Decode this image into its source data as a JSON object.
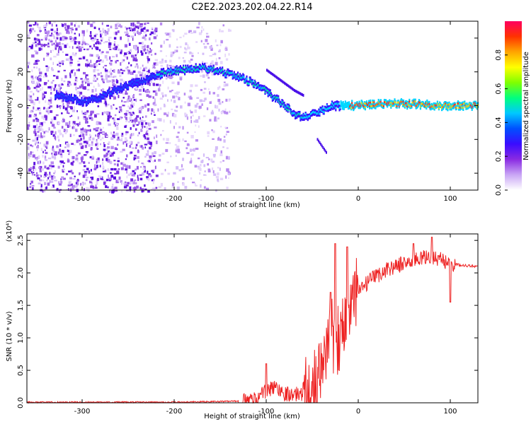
{
  "title": "C2E2.2023.202.04.22.R14",
  "chart_data": [
    {
      "type": "heatmap",
      "xlabel": "Height of straight line (km)",
      "ylabel": "Frequency (Hz)",
      "xlim": [
        -360,
        130
      ],
      "ylim": [
        -50,
        50
      ],
      "x_ticks": [
        -300,
        -200,
        -100,
        0,
        100
      ],
      "y_ticks": [
        -40,
        -20,
        0,
        20,
        40
      ],
      "colorbar": {
        "label": "Normalized spectral amplitude",
        "range": [
          0,
          1
        ],
        "ticks": [
          "0.0",
          "0.2",
          "0.4",
          "0.6",
          "0.8"
        ],
        "colors": [
          "#ffffff",
          "#c9a6f5",
          "#8a2be2",
          "#3a0cff",
          "#0050ff",
          "#00c8ff",
          "#00ff80",
          "#7fff00",
          "#ffff00",
          "#ffa500",
          "#ff3300",
          "#ff0060"
        ]
      },
      "trace": {
        "x": [
          -330,
          -310,
          -300,
          -285,
          -270,
          -250,
          -230,
          -210,
          -195,
          -180,
          -165,
          -150,
          -130,
          -110,
          -95,
          -80,
          -70,
          -60,
          -50,
          -40,
          -30,
          -15,
          0,
          20,
          40,
          60,
          80,
          100,
          120,
          130
        ],
        "y": [
          6,
          4,
          2,
          4,
          8,
          12,
          16,
          20,
          21,
          22,
          22,
          20,
          17,
          12,
          6,
          0,
          -5,
          -7,
          -5,
          -3,
          0,
          0,
          0,
          1,
          1,
          1,
          0,
          0,
          0,
          0
        ]
      },
      "branch": {
        "x": [
          -100,
          -90,
          -80,
          -70,
          -60
        ],
        "y": [
          21,
          17,
          13,
          9,
          6
        ]
      },
      "drop": {
        "x": [
          -45,
          -40,
          -35
        ],
        "y": [
          -20,
          -24,
          -28
        ]
      }
    },
    {
      "type": "line",
      "xlabel": "Height of straight line (km)",
      "ylabel": "SNR (10 * v/v)",
      "multiplier": "(x10⁴)",
      "xlim": [
        -360,
        130
      ],
      "ylim": [
        0,
        2.6
      ],
      "x_ticks": [
        -300,
        -200,
        -100,
        0,
        100
      ],
      "y_ticks": [
        "0.0",
        "0.5",
        "1.0",
        "1.5",
        "2.0",
        "2.5"
      ],
      "color": "#ee2222",
      "series": {
        "x": [
          -360,
          -200,
          -150,
          -120,
          -110,
          -100,
          -90,
          -80,
          -70,
          -60,
          -50,
          -40,
          -35,
          -30,
          -25,
          -20,
          -15,
          -10,
          0,
          10,
          20,
          30,
          40,
          60,
          80,
          90,
          100,
          110,
          130
        ],
        "y": [
          0.01,
          0.01,
          0.02,
          0.03,
          0.08,
          0.18,
          0.25,
          0.15,
          0.12,
          0.15,
          0.2,
          0.4,
          0.9,
          1.1,
          0.9,
          1.1,
          1.2,
          1.4,
          1.7,
          1.85,
          1.95,
          2.05,
          2.1,
          2.2,
          2.25,
          2.2,
          2.15,
          2.12,
          2.1
        ]
      },
      "peaks": [
        {
          "x": -100,
          "y": 0.6
        },
        {
          "x": -30,
          "y": 1.7
        },
        {
          "x": -25,
          "y": 2.45
        },
        {
          "x": -12,
          "y": 2.4
        },
        {
          "x": 60,
          "y": 2.45
        },
        {
          "x": 80,
          "y": 2.55
        },
        {
          "x": 100,
          "y": 1.55
        }
      ]
    }
  ]
}
